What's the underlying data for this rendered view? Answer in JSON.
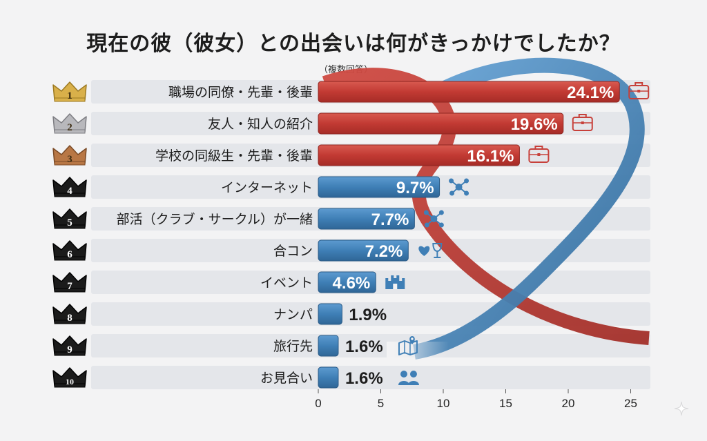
{
  "title": "現在の彼（彼女）との出会いは何がきっかけでしたか？",
  "subtitle": "（複数回答）",
  "colors": {
    "top": "#c7403a",
    "rest": "#3f7fb6",
    "gold": "#d9b04a",
    "silver": "#b8b8bc",
    "bronze": "#b87745",
    "black": "#1b1b1b",
    "row": "#e4e6ea"
  },
  "chart_data": {
    "type": "bar",
    "orientation": "horizontal",
    "title": "現在の彼（彼女）との出会いは何がきっかけでしたか？",
    "subtitle": "（複数回答）",
    "categories": [
      "職場の同僚・先輩・後輩",
      "友人・知人の紹介",
      "学校の同級生・先輩・後輩",
      "インターネット",
      "部活（クラブ・サークル）が一緒",
      "合コン",
      "イベント",
      "ナンパ",
      "旅行先",
      "お見合い"
    ],
    "values": [
      24.1,
      19.6,
      16.1,
      9.7,
      7.7,
      7.2,
      4.6,
      1.9,
      1.6,
      1.6
    ],
    "value_labels": [
      "24.1%",
      "19.6%",
      "16.1%",
      "9.7%",
      "7.7%",
      "7.2%",
      "4.6%",
      "1.9%",
      "1.6%",
      "1.6%"
    ],
    "ranks": [
      "1",
      "2",
      "3",
      "4",
      "5",
      "6",
      "7",
      "8",
      "9",
      "10"
    ],
    "icons": [
      "briefcase-icon",
      "briefcase-icon",
      "briefcase-icon",
      "network-icon",
      "network-icon",
      "heart-wine-icon",
      "castle-icon",
      "",
      "map-icon",
      "couple-icon"
    ],
    "xlim": [
      0,
      26
    ],
    "xticks": [
      0,
      5,
      10,
      15,
      20,
      25
    ],
    "grid": false
  }
}
